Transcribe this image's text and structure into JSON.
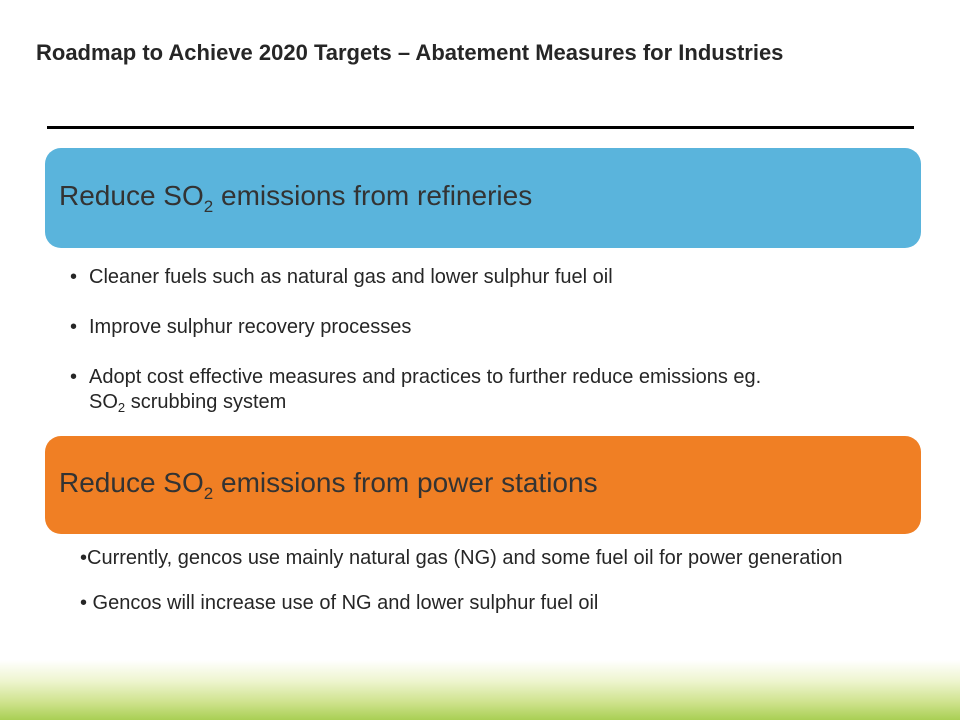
{
  "title": "Roadmap to Achieve 2020 Targets – Abatement Measures for Industries",
  "sections": [
    {
      "heading_pre": "Reduce SO",
      "heading_sub": "2",
      "heading_post": " emissions from refineries",
      "color": "#5ab4dc",
      "bullets": [
        {
          "marker": "•",
          "text": "Cleaner fuels such as natural gas and lower sulphur fuel oil"
        },
        {
          "marker": "•",
          "text": "Improve sulphur recovery processes"
        },
        {
          "marker": "•",
          "text": "Adopt cost effective measures and practices to further reduce emissions  eg.",
          "line2_pre": "SO",
          "line2_sub": "2",
          "line2_post": " scrubbing system"
        }
      ]
    },
    {
      "heading_pre": "Reduce SO",
      "heading_sub": "2",
      "heading_post": " emissions from power stations",
      "color": "#f07f24",
      "bullets": [
        {
          "text": "•Currently, gencos use mainly natural gas (NG) and some fuel oil for power generation"
        },
        {
          "text": "• Gencos will increase use of NG and lower sulphur fuel oil"
        }
      ]
    }
  ],
  "footer_band_color": "#a9cf54"
}
